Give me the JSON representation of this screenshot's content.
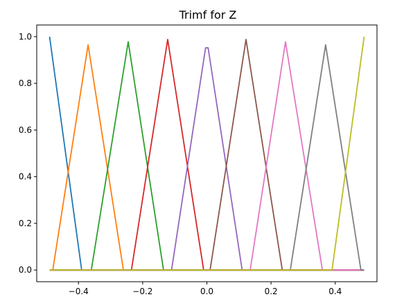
{
  "chart_data": {
    "type": "line",
    "title": "Trimf for Z",
    "xlabel": "",
    "ylabel": "",
    "xlim": [
      -0.53,
      0.53
    ],
    "ylim": [
      -0.05,
      1.05
    ],
    "xticks": [
      -0.4,
      -0.2,
      0.0,
      0.2,
      0.4
    ],
    "xtick_labels": [
      "−0.4",
      "−0.2",
      "0.0",
      "0.2",
      "0.4"
    ],
    "yticks": [
      0.0,
      0.2,
      0.4,
      0.6,
      0.8,
      1.0
    ],
    "ytick_labels": [
      "0.0",
      "0.2",
      "0.4",
      "0.6",
      "0.8",
      "1.0"
    ],
    "grid": false,
    "legend": "none",
    "x_domain": [
      -0.49,
      0.49
    ],
    "series": [
      {
        "color": "#1f77b4",
        "points": [
          [
            -0.49,
            1.0
          ],
          [
            -0.39,
            0.0
          ],
          [
            0.49,
            0.0
          ]
        ]
      },
      {
        "color": "#ff7f0e",
        "points": [
          [
            -0.49,
            0.0
          ],
          [
            -0.48,
            0.0
          ],
          [
            -0.37,
            0.965
          ],
          [
            -0.26,
            0.0
          ],
          [
            0.49,
            0.0
          ]
        ]
      },
      {
        "color": "#2ca02c",
        "points": [
          [
            -0.49,
            0.0
          ],
          [
            -0.36,
            0.0
          ],
          [
            -0.245,
            0.978
          ],
          [
            -0.135,
            0.0
          ],
          [
            0.49,
            0.0
          ]
        ]
      },
      {
        "color": "#d62728",
        "points": [
          [
            -0.49,
            0.0
          ],
          [
            -0.235,
            0.0
          ],
          [
            -0.122,
            0.988
          ],
          [
            -0.01,
            0.0
          ],
          [
            0.49,
            0.0
          ]
        ]
      },
      {
        "color": "#9467bd",
        "points": [
          [
            -0.49,
            0.0
          ],
          [
            -0.11,
            0.0
          ],
          [
            -0.004,
            0.952
          ],
          [
            0.004,
            0.952
          ],
          [
            0.11,
            0.0
          ],
          [
            0.49,
            0.0
          ]
        ]
      },
      {
        "color": "#8c564b",
        "points": [
          [
            -0.49,
            0.0
          ],
          [
            0.01,
            0.0
          ],
          [
            0.122,
            0.988
          ],
          [
            0.235,
            0.0
          ],
          [
            0.49,
            0.0
          ]
        ]
      },
      {
        "color": "#e377c2",
        "points": [
          [
            -0.49,
            0.0
          ],
          [
            0.135,
            0.0
          ],
          [
            0.245,
            0.978
          ],
          [
            0.36,
            0.0
          ],
          [
            0.49,
            0.0
          ]
        ]
      },
      {
        "color": "#7f7f7f",
        "points": [
          [
            -0.49,
            0.0
          ],
          [
            0.26,
            0.0
          ],
          [
            0.37,
            0.965
          ],
          [
            0.48,
            0.0
          ],
          [
            0.49,
            0.0
          ]
        ]
      },
      {
        "color": "#bcbd22",
        "points": [
          [
            -0.49,
            0.0
          ],
          [
            0.39,
            0.0
          ],
          [
            0.49,
            1.0
          ]
        ]
      }
    ]
  }
}
